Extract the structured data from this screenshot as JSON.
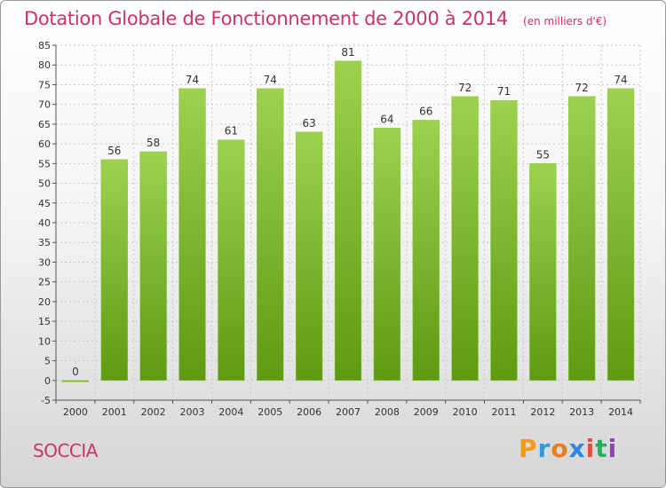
{
  "title": "Dotation Globale de Fonctionnement de 2000 à 2014",
  "unit": "(en milliers d'€)",
  "commune": "SOCCIA",
  "logo": {
    "letters": [
      "P",
      "r",
      "o",
      "x",
      "i",
      "t",
      "i"
    ],
    "colors": [
      "#f39c12",
      "#3498db",
      "#e67e22",
      "#2e86de",
      "#e74c3c",
      "#27ae60",
      "#8e44ad"
    ]
  },
  "chart_data": {
    "type": "bar",
    "categories": [
      "2000",
      "2001",
      "2002",
      "2003",
      "2004",
      "2005",
      "2006",
      "2007",
      "2008",
      "2009",
      "2010",
      "2011",
      "2012",
      "2013",
      "2014"
    ],
    "values": [
      0,
      56,
      58,
      74,
      61,
      74,
      63,
      81,
      64,
      66,
      72,
      71,
      55,
      72,
      74
    ],
    "ylim": [
      -5,
      85
    ],
    "yticks": [
      -5,
      0,
      5,
      10,
      15,
      20,
      25,
      30,
      35,
      40,
      45,
      50,
      55,
      60,
      65,
      70,
      75,
      80,
      85
    ],
    "grid": true,
    "bar_color_top": "#9dd24f",
    "bar_color_bottom": "#5e9a12"
  }
}
